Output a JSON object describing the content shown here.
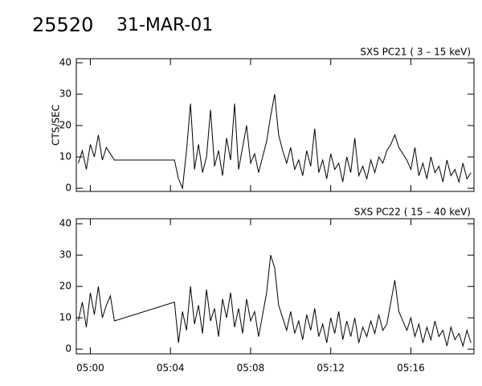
{
  "header": {
    "title": "25520",
    "subtitle": "31-MAR-01"
  },
  "chart_data": [
    {
      "type": "line",
      "title": "SXS PC21  (  3 – 15 keV)",
      "y_label": "CTS/SEC",
      "color": "#000000",
      "xlim": [
        -0.7,
        19.15
      ],
      "ylim": [
        -1,
        41.3
      ],
      "xticks": [
        {
          "value": 0,
          "label": "05:00"
        },
        {
          "value": 4,
          "label": "05:04"
        },
        {
          "value": 8,
          "label": "05:08"
        },
        {
          "value": 12,
          "label": "05:12"
        },
        {
          "value": 16,
          "label": "05:16"
        }
      ],
      "yticks": [
        0,
        10,
        20,
        30,
        40
      ],
      "x": [
        -0.6,
        -0.4,
        -0.2,
        0,
        0.2,
        0.4,
        0.6,
        0.8,
        1,
        1.2,
        4.2,
        4.4,
        4.6,
        4.8,
        5,
        5.2,
        5.4,
        5.6,
        5.8,
        6,
        6.2,
        6.4,
        6.6,
        6.8,
        7,
        7.2,
        7.4,
        7.6,
        7.8,
        8,
        8.2,
        8.4,
        8.6,
        8.8,
        9,
        9.2,
        9.4,
        9.6,
        9.8,
        10,
        10.2,
        10.4,
        10.6,
        10.8,
        11,
        11.2,
        11.4,
        11.6,
        11.8,
        12,
        12.2,
        12.4,
        12.6,
        12.8,
        13,
        13.2,
        13.4,
        13.6,
        13.8,
        14,
        14.2,
        14.4,
        14.6,
        14.8,
        15,
        15.2,
        15.4,
        15.6,
        15.8,
        16,
        16.2,
        16.4,
        16.6,
        16.8,
        17,
        17.2,
        17.4,
        17.6,
        17.8,
        18,
        18.2,
        18.4,
        18.6,
        18.8,
        19
      ],
      "values": [
        8,
        12,
        6,
        14,
        10,
        17,
        9,
        13,
        11,
        9,
        9,
        3,
        0,
        12,
        27,
        6,
        14,
        5,
        10,
        25,
        7,
        12,
        4,
        16,
        9,
        27,
        6,
        13,
        20,
        8,
        11,
        5,
        10,
        15,
        23,
        30,
        17,
        12,
        8,
        13,
        6,
        9,
        4,
        12,
        7,
        19,
        5,
        9,
        3,
        11,
        6,
        8,
        2,
        10,
        5,
        16,
        4,
        7,
        3,
        9,
        5,
        10,
        8,
        12,
        14,
        17,
        13,
        11,
        9,
        6,
        13,
        4,
        8,
        3,
        10,
        5,
        7,
        2,
        9,
        4,
        6,
        2,
        8,
        3,
        5
      ]
    },
    {
      "type": "line",
      "title": "SXS PC22  ( 15 – 40 keV)",
      "color": "#000000",
      "xlim": [
        -0.7,
        19.15
      ],
      "ylim": [
        -1.5,
        41.6
      ],
      "xticks": [
        {
          "value": 0,
          "label": "05:00"
        },
        {
          "value": 4,
          "label": "05:04"
        },
        {
          "value": 8,
          "label": "05:08"
        },
        {
          "value": 12,
          "label": "05:12"
        },
        {
          "value": 16,
          "label": "05:16"
        }
      ],
      "yticks": [
        0,
        10,
        20,
        30,
        40
      ],
      "x": [
        -0.6,
        -0.4,
        -0.2,
        0,
        0.2,
        0.4,
        0.6,
        0.8,
        1,
        1.2,
        4.2,
        4.4,
        4.6,
        4.8,
        5,
        5.2,
        5.4,
        5.6,
        5.8,
        6,
        6.2,
        6.4,
        6.6,
        6.8,
        7,
        7.2,
        7.4,
        7.6,
        7.8,
        8,
        8.2,
        8.4,
        8.6,
        8.8,
        9,
        9.2,
        9.4,
        9.6,
        9.8,
        10,
        10.2,
        10.4,
        10.6,
        10.8,
        11,
        11.2,
        11.4,
        11.6,
        11.8,
        12,
        12.2,
        12.4,
        12.6,
        12.8,
        13,
        13.2,
        13.4,
        13.6,
        13.8,
        14,
        14.2,
        14.4,
        14.6,
        14.8,
        15,
        15.2,
        15.4,
        15.6,
        15.8,
        16,
        16.2,
        16.4,
        16.6,
        16.8,
        17,
        17.2,
        17.4,
        17.6,
        17.8,
        18,
        18.2,
        18.4,
        18.6,
        18.8,
        19
      ],
      "values": [
        9,
        15,
        7,
        18,
        11,
        20,
        10,
        14,
        17,
        9,
        15,
        2,
        12,
        6,
        20,
        8,
        14,
        5,
        19,
        9,
        13,
        4,
        16,
        10,
        18,
        7,
        13,
        5,
        16,
        9,
        12,
        4,
        11,
        18,
        30,
        26,
        14,
        10,
        6,
        12,
        5,
        9,
        3,
        11,
        6,
        13,
        4,
        8,
        2,
        10,
        5,
        12,
        3,
        9,
        4,
        10,
        2,
        7,
        4,
        9,
        5,
        11,
        6,
        8,
        15,
        22,
        12,
        9,
        6,
        10,
        4,
        8,
        2,
        7,
        3,
        9,
        4,
        6,
        1,
        7,
        3,
        5,
        1,
        6,
        2
      ]
    }
  ]
}
